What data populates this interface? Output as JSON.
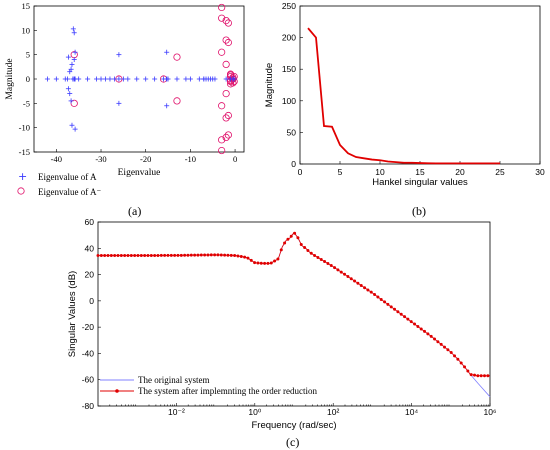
{
  "colors": {
    "eig_a": "#3a3aff",
    "eig_a_red": "#e0106a",
    "hankel": "#e00000",
    "original": "#8080ff",
    "reduced": "#e00000"
  },
  "chart_data": [
    {
      "panel": "(a)",
      "type": "scatter",
      "xlabel": "Eigenvalue",
      "ylabel": "Magnitude",
      "xlim": [
        -45,
        2
      ],
      "ylim": [
        -15,
        15
      ],
      "xticks": [
        -40,
        -30,
        -20,
        -10,
        0
      ],
      "yticks": [
        -15,
        -10,
        -5,
        0,
        5,
        10,
        15
      ],
      "series": [
        {
          "name": "Eigenvalue of A",
          "marker": "plus",
          "x": [
            -42,
            -40,
            -38,
            -37.5,
            -36.3,
            -36.2,
            -36,
            -35.8,
            -36,
            -35.8,
            -36.5,
            -36.7,
            -37,
            -37.3,
            -36.5,
            -36.7,
            -37,
            -37.3,
            -36,
            -35.8,
            -36,
            -35.8,
            -35,
            -33,
            -31,
            -30,
            -29,
            -28,
            -27,
            -26,
            -25,
            -24,
            -22,
            -20,
            -18,
            -16,
            -15.3,
            -15.3,
            -15,
            -13,
            -11,
            -10,
            -8,
            -6.5,
            -6,
            -5.5,
            -5,
            -4.5,
            -26,
            -26,
            -15.3,
            -15.3,
            -7,
            -7,
            -2,
            -1,
            -0.5,
            -0.2
          ],
          "y": [
            0,
            0,
            0,
            0,
            0,
            10.3,
            9.5,
            5.5,
            4,
            -10.3,
            -9.5,
            -4.5,
            -3,
            -2,
            3,
            2,
            1.5,
            4.5,
            0,
            0,
            0,
            0,
            0,
            0,
            0,
            0,
            0,
            0,
            0,
            0,
            0,
            0,
            0,
            0,
            0,
            0,
            0,
            0,
            0,
            0,
            0,
            0,
            0,
            0,
            0,
            0,
            0,
            0,
            5,
            -5,
            5.5,
            -5.5,
            0,
            0,
            0,
            0,
            0,
            0
          ]
        },
        {
          "name": "Eigenvalue of A⁻",
          "marker": "circle",
          "x": [
            -36,
            -36,
            -26,
            -16,
            -13,
            -13,
            -3,
            -3,
            -3,
            -3,
            -3,
            -3,
            -2,
            -2,
            -2,
            -2,
            -2,
            -2,
            -1.5,
            -1.5,
            -1.5,
            -1.5,
            -1,
            -1,
            -1,
            -1,
            -0.5,
            -0.5,
            -1,
            -1,
            -0.5,
            -0.5,
            -0.2,
            -0.2
          ],
          "y": [
            5,
            -5,
            0,
            0,
            4.5,
            -4.5,
            14.7,
            -14.7,
            12.5,
            -12.5,
            5.5,
            -5.5,
            12,
            -12,
            8,
            -8,
            3,
            -3,
            11.5,
            -11.5,
            7.5,
            -7.5,
            0.5,
            -0.5,
            1,
            -1,
            0,
            0.3,
            -0.3,
            0.8,
            -0.8,
            0,
            0.5,
            -0.5
          ]
        }
      ]
    },
    {
      "panel": "(b)",
      "type": "line",
      "xlabel": "Hankel singular values",
      "ylabel": "Magnitude",
      "xlim": [
        0,
        30
      ],
      "ylim": [
        0,
        250
      ],
      "xticks": [
        0,
        5,
        10,
        15,
        20,
        25,
        30
      ],
      "yticks": [
        0,
        50,
        100,
        150,
        200,
        250
      ],
      "x": [
        1,
        2,
        3,
        4,
        5,
        6,
        7,
        8,
        9,
        10,
        11,
        12,
        13,
        14,
        15,
        16,
        17,
        18,
        19,
        20,
        21,
        22,
        23,
        24,
        25
      ],
      "y": [
        215,
        200,
        60,
        59,
        30,
        17,
        11,
        9,
        7,
        6,
        4,
        3,
        2,
        2,
        1.5,
        1.2,
        1,
        1,
        1,
        1,
        1,
        1,
        1,
        1,
        1
      ]
    },
    {
      "panel": "(c)",
      "type": "line",
      "xlabel": "Frequency (rad/sec)",
      "ylabel": "Singular Values (dB)",
      "xscale": "log",
      "xlim": [
        0.0001,
        1000000
      ],
      "ylim": [
        -80,
        60
      ],
      "xticks": [
        "10⁻²",
        "10⁰",
        "10²",
        "10⁴",
        "10⁶"
      ],
      "yticks": [
        -80,
        -60,
        -40,
        -20,
        0,
        20,
        40,
        60
      ],
      "series": [
        {
          "name": "The original system",
          "logx": [
            -4,
            -3,
            -2,
            -1,
            -0.5,
            -0.2,
            0,
            0.2,
            0.4,
            0.6,
            0.7,
            0.8,
            0.9,
            1,
            1.1,
            1.2,
            1.3,
            1.4,
            1.5,
            2,
            2.5,
            3,
            3.5,
            4,
            4.5,
            5,
            5.2,
            5.4,
            5.5,
            5.7,
            6
          ],
          "y": [
            34.5,
            34.5,
            34.6,
            35,
            34.5,
            33,
            29,
            28.5,
            28.5,
            32,
            41,
            46,
            48,
            52,
            48,
            42,
            40,
            37,
            35,
            26,
            16,
            6,
            -5,
            -16,
            -27,
            -39,
            -45,
            -52,
            -56,
            -63,
            -73
          ]
        },
        {
          "name": "The system after implemnting the order reduction",
          "logx": [
            -4,
            -3,
            -2,
            -1,
            -0.5,
            -0.2,
            0,
            0.2,
            0.4,
            0.6,
            0.7,
            0.8,
            0.9,
            1,
            1.1,
            1.2,
            1.3,
            1.4,
            1.5,
            2,
            2.5,
            3,
            3.5,
            4,
            4.5,
            5,
            5.2,
            5.4,
            5.5,
            5.7,
            6
          ],
          "y": [
            34.5,
            34.5,
            34.6,
            35,
            34.5,
            33,
            29,
            28.5,
            28.5,
            32,
            41,
            46,
            48,
            52,
            48,
            42,
            40,
            37,
            35,
            26,
            16,
            6,
            -5,
            -16,
            -27,
            -39,
            -45,
            -52,
            -56,
            -57,
            -57
          ]
        }
      ]
    }
  ],
  "labels": {
    "a": "(a)",
    "b": "(b)",
    "c": "(c)"
  },
  "legend_a": {
    "item1": "Eigenvalue of A",
    "item2": "Eigenvalue of A⁻"
  },
  "legend_c": {
    "item1": "The original system",
    "item2": "The system after implemnting the order reduction"
  }
}
